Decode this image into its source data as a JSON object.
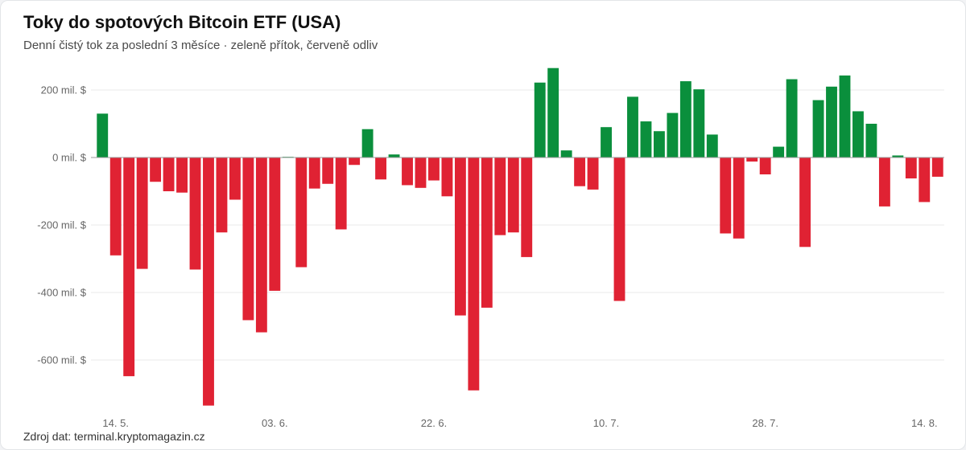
{
  "title": "Toky do spotových Bitcoin ETF (USA)",
  "subtitle": "Denní čistý tok za poslední 3 měsíce · zeleně přítok, červeně odliv",
  "source": "Zdroj dat: terminal.kryptomagazin.cz",
  "colors": {
    "inflow": "#0a8f3c",
    "outflow": "#e02233",
    "grid": "#e8e8e8",
    "zero_line": "#999999"
  },
  "chart_data": {
    "type": "bar",
    "title": "Toky do spotových Bitcoin ETF (USA)",
    "xlabel": "",
    "ylabel": "",
    "unit": "mil. $",
    "ylim": [
      -735,
      265
    ],
    "yticks": [
      200,
      0,
      -200,
      -400,
      -600
    ],
    "ytick_labels": [
      "200 mil. $",
      "0 mil. $",
      "-200 mil. $",
      "-400 mil. $",
      "-600 mil. $"
    ],
    "xtick_labels": [
      {
        "label": "14. 5.",
        "index": 1
      },
      {
        "label": "03. 6.",
        "index": 13
      },
      {
        "label": "22. 6.",
        "index": 25
      },
      {
        "label": "10. 7.",
        "index": 38
      },
      {
        "label": "28. 7.",
        "index": 50
      },
      {
        "label": "14. 8.",
        "index": 62
      }
    ],
    "grid": true,
    "values": [
      130,
      -290,
      -648,
      -330,
      -72,
      -100,
      -104,
      -332,
      -735,
      -222,
      -125,
      -482,
      -518,
      -395,
      2,
      -325,
      -92,
      -78,
      -213,
      -22,
      84,
      -65,
      9,
      -82,
      -90,
      -68,
      -115,
      -468,
      -690,
      -445,
      -230,
      -222,
      -295,
      222,
      265,
      21,
      -85,
      -95,
      90,
      -425,
      180,
      107,
      78,
      132,
      226,
      202,
      68,
      -225,
      -240,
      -12,
      -50,
      32,
      232,
      -265,
      170,
      210,
      243,
      137,
      100,
      -145,
      6,
      -62,
      -132,
      -57
    ]
  }
}
